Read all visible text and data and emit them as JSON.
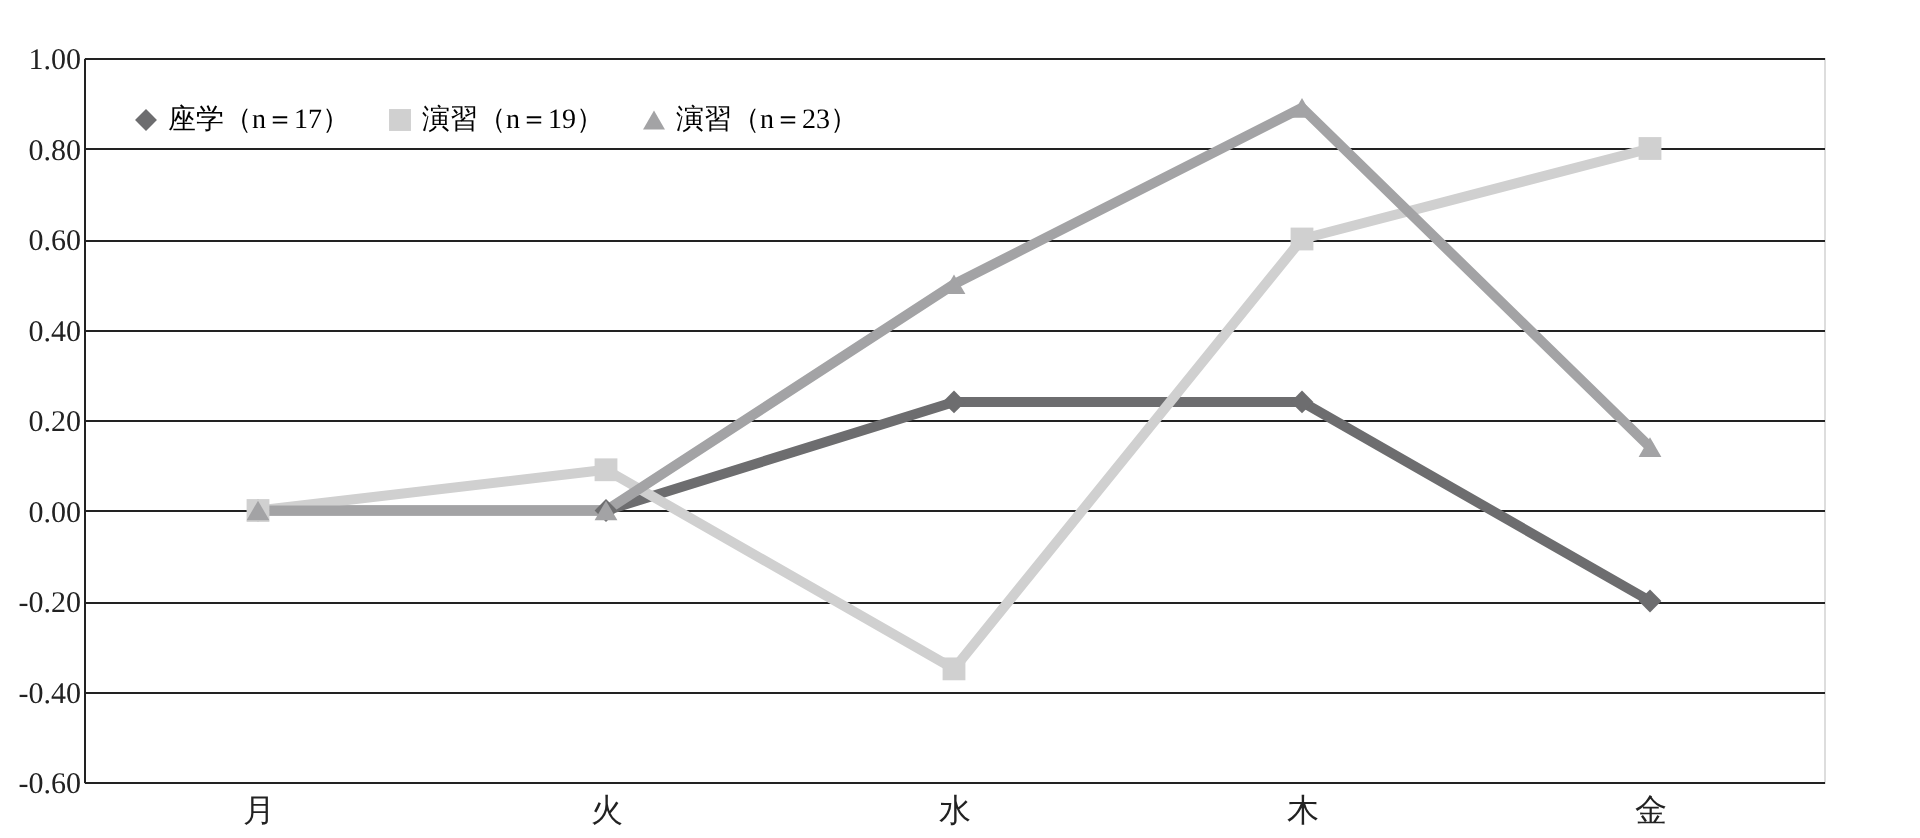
{
  "chart_data": {
    "type": "line",
    "categories": [
      "月",
      "火",
      "水",
      "木",
      "金"
    ],
    "series": [
      {
        "name": "座学（n＝17）",
        "color": "#6d6d6f",
        "marker": "diamond",
        "values": [
          0,
          0,
          0.24,
          0.24,
          -0.2
        ]
      },
      {
        "name": "演習（n＝19）",
        "color": "#d0d0d0",
        "marker": "square",
        "values": [
          0,
          0.09,
          -0.35,
          0.6,
          0.8
        ]
      },
      {
        "name": "演習（n＝23）",
        "color": "#a3a3a5",
        "marker": "triangle",
        "values": [
          0,
          0,
          0.5,
          0.89,
          0.14
        ]
      }
    ],
    "ylim": [
      -0.6,
      1.0
    ],
    "yticks": [
      {
        "value": -0.6,
        "label": "-0.60"
      },
      {
        "value": -0.4,
        "label": "-0.40"
      },
      {
        "value": -0.2,
        "label": "-0.20"
      },
      {
        "value": 0,
        "label": "0.00"
      },
      {
        "value": 0.2,
        "label": "0.20"
      },
      {
        "value": 0.4,
        "label": "0.40"
      },
      {
        "value": 0.6,
        "label": "0.60"
      },
      {
        "value": 0.8,
        "label": "0.80"
      },
      {
        "value": 1.0,
        "label": "1.00"
      }
    ],
    "grid": "y",
    "legend": "top left",
    "line_style": "solid"
  }
}
